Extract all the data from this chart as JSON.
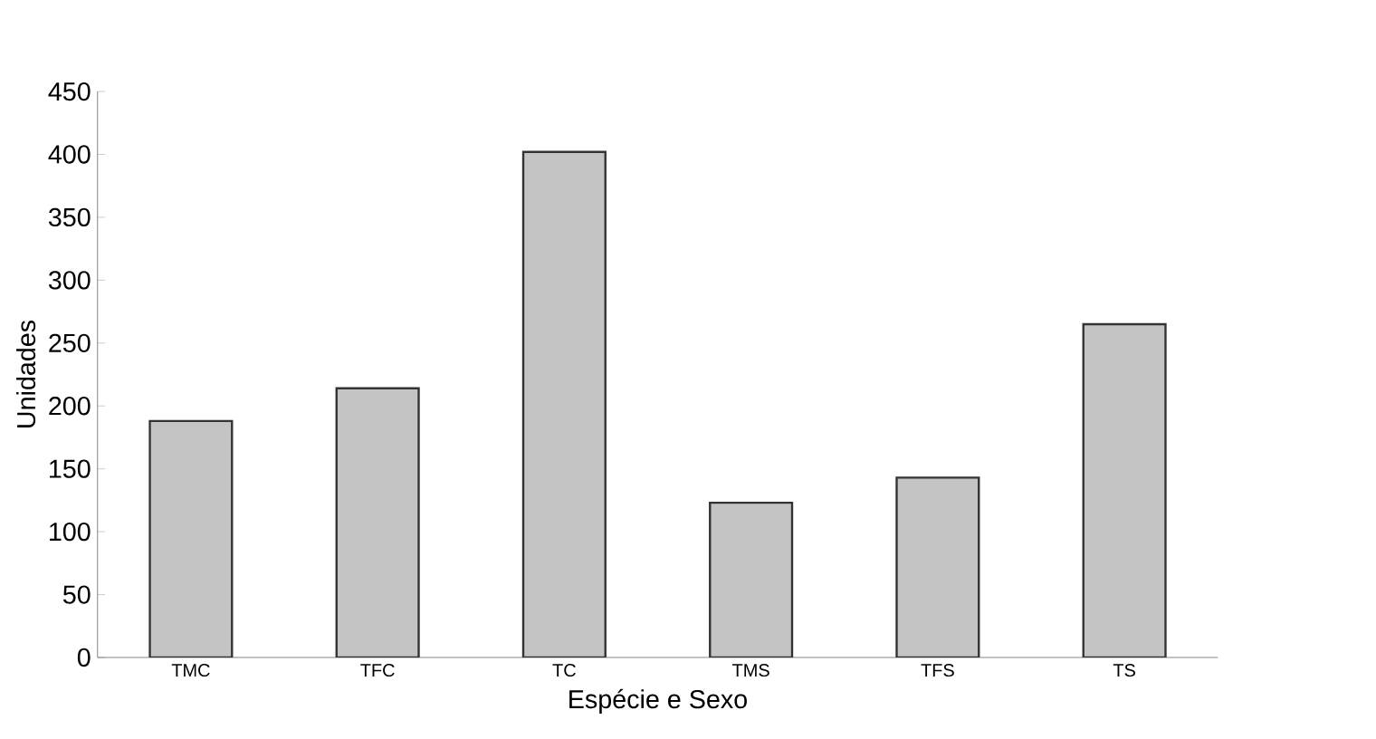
{
  "chart_data": {
    "type": "bar",
    "xlabel": "Espécie e Sexo",
    "ylabel": "Unidades",
    "categories": [
      "TMC",
      "TFC",
      "TC",
      "TMS",
      "TFS",
      "TS"
    ],
    "values": [
      188,
      214,
      402,
      123,
      143,
      265
    ],
    "color": "#c4c4c4",
    "ylim": [
      0,
      450
    ],
    "yticks": [
      0,
      50,
      100,
      150,
      200,
      250,
      300,
      350,
      400,
      450
    ],
    "grid": false
  }
}
